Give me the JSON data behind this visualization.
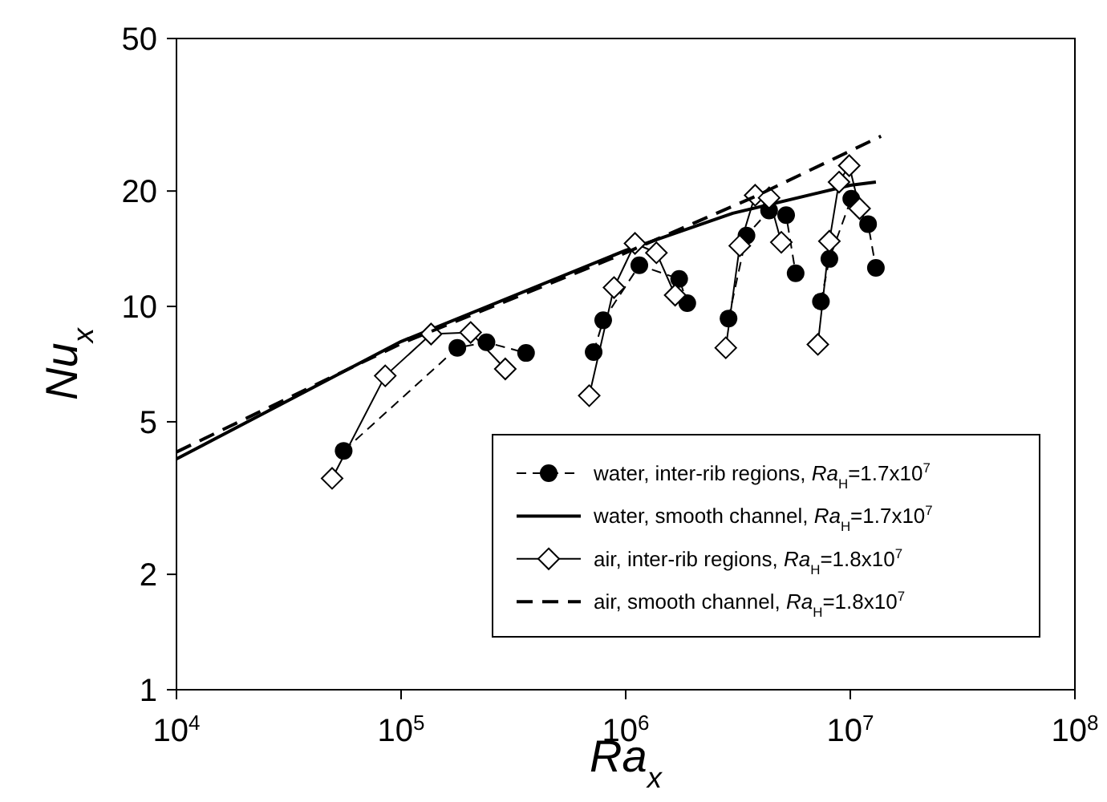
{
  "chart_data": {
    "type": "line",
    "xlabel": "Ra$_{x}$",
    "ylabel": "Nu$_{x}$",
    "log": "xy",
    "grid": false,
    "legend": "bottom right",
    "xlim": [
      10000,
      100000000
    ],
    "xticks": [
      {
        "value": 10000,
        "label": "10$^{4}$"
      },
      {
        "value": 100000,
        "label": "10$^{5}$"
      },
      {
        "value": 1000000,
        "label": "10$^{6}$"
      },
      {
        "value": 10000000,
        "label": "10$^{7}$"
      },
      {
        "value": 100000000,
        "label": "10$^{8}$"
      }
    ],
    "ylim": [
      1,
      50
    ],
    "yticks": [
      1,
      2,
      5,
      10,
      20,
      50
    ],
    "series": [
      {
        "name": "water, inter-rib regions, Ra$_{H}$=1.7x10$^{7}$",
        "color": "#000000",
        "marker": "circle",
        "line_style": "dashed",
        "x": [
          55500,
          178000,
          240000,
          360000,
          500000,
          720000,
          794000,
          1150000,
          1730000,
          1880000,
          2300000,
          2870000,
          3450000,
          4350000,
          5180000,
          5710000,
          6500000,
          7400000,
          8070000,
          10100000,
          12000000,
          13000000
        ],
        "values": [
          4.2,
          7.8,
          8.06,
          7.56,
          null,
          7.6,
          9.2,
          12.8,
          11.8,
          10.2,
          null,
          9.3,
          15.3,
          17.8,
          17.3,
          12.2,
          null,
          10.3,
          13.3,
          19.1,
          16.4,
          12.6
        ]
      },
      {
        "name": "water, smooth channel, Ra$_{H}$=1.7x10$^{7}$",
        "color": "#000000",
        "marker": "none",
        "line_style": "solid",
        "x": [
          10000,
          100000,
          1000000,
          3000000,
          10000000,
          13000000
        ],
        "values": [
          4.0,
          8.1,
          14,
          17.5,
          20.7,
          21.1
        ]
      },
      {
        "name": "air, inter-rib regions, Ra$_{H}$=1.8x10$^{7}$",
        "color": "#000000",
        "marker": "diamond",
        "line_style": "solid",
        "x": [
          49300,
          85000,
          136000,
          204000,
          291000,
          450000,
          688000,
          887000,
          1100000,
          1370000,
          1660000,
          2200000,
          2790000,
          3220000,
          3770000,
          4350000,
          4930000,
          6000000,
          7170000,
          8070000,
          8910000,
          9890000,
          11000000
        ],
        "values": [
          3.56,
          6.59,
          8.47,
          8.55,
          6.87,
          null,
          5.85,
          11.2,
          14.6,
          13.8,
          10.7,
          null,
          7.8,
          14.4,
          19.5,
          19.2,
          14.7,
          null,
          7.96,
          14.8,
          21.1,
          23.3,
          18.0
        ]
      },
      {
        "name": "air, smooth channel, Ra$_{H}$=1.8x10$^{7}$",
        "color": "#000000",
        "marker": "none",
        "line_style": "dashed",
        "x": [
          10000,
          100000,
          1000000,
          3800000,
          13700000
        ],
        "values": [
          4.17,
          8.0,
          13.8,
          19.4,
          27.8
        ]
      }
    ]
  }
}
